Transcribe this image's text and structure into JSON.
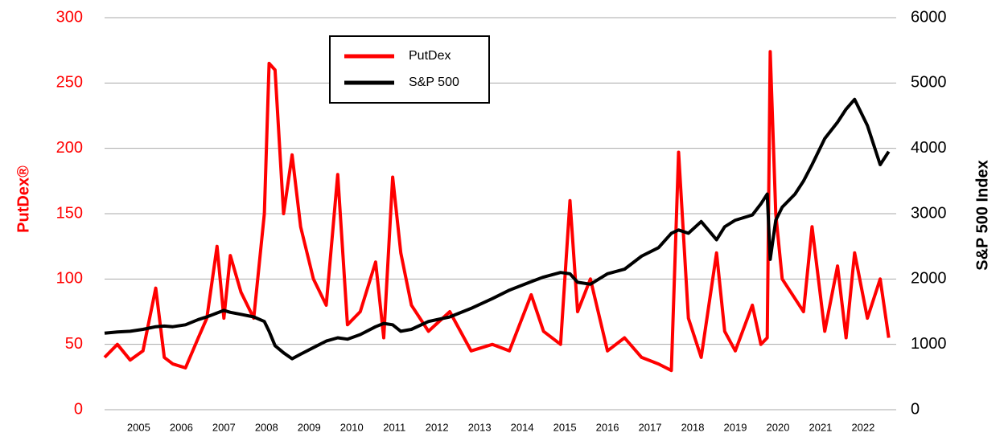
{
  "chart_data": {
    "type": "line",
    "y_label": "PutDex®",
    "y2_label": "S&P 500 Index",
    "x": [
      2004.7,
      2005.0,
      2005.3,
      2005.6,
      2005.9,
      2006.1,
      2006.3,
      2006.6,
      2006.9,
      2007.1,
      2007.34,
      2007.5,
      2007.65,
      2007.9,
      2008.2,
      2008.45,
      2008.56,
      2008.7,
      2008.9,
      2009.1,
      2009.3,
      2009.6,
      2009.9,
      2010.17,
      2010.4,
      2010.7,
      2011.06,
      2011.25,
      2011.46,
      2011.65,
      2011.9,
      2012.3,
      2012.8,
      2013.3,
      2013.8,
      2014.2,
      2014.71,
      2015.0,
      2015.4,
      2015.62,
      2015.8,
      2016.1,
      2016.5,
      2016.9,
      2017.3,
      2017.7,
      2018.0,
      2018.17,
      2018.4,
      2018.7,
      2019.06,
      2019.25,
      2019.5,
      2019.9,
      2020.1,
      2020.25,
      2020.32,
      2020.45,
      2020.6,
      2020.9,
      2021.1,
      2021.3,
      2021.6,
      2021.9,
      2022.1,
      2022.3,
      2022.6,
      2022.9,
      2023.1
    ],
    "series": [
      {
        "name": "PutDex",
        "color": "#ff0000",
        "axis": "y",
        "values": [
          40,
          50,
          38,
          45,
          93,
          40,
          35,
          32,
          55,
          70,
          125,
          70,
          118,
          90,
          70,
          150,
          265,
          260,
          150,
          195,
          140,
          100,
          80,
          180,
          65,
          75,
          113,
          55,
          178,
          120,
          80,
          60,
          75,
          45,
          50,
          45,
          88,
          60,
          50,
          160,
          75,
          100,
          45,
          55,
          40,
          35,
          30,
          197,
          70,
          40,
          120,
          60,
          45,
          80,
          50,
          55,
          274,
          150,
          100,
          85,
          75,
          140,
          60,
          110,
          55,
          120,
          70,
          100,
          55
        ]
      },
      {
        "name": "S&P 500",
        "color": "#000000",
        "axis": "y2",
        "values": [
          1170,
          1190,
          1200,
          1230,
          1270,
          1280,
          1270,
          1300,
          1380,
          1420,
          1480,
          1520,
          1490,
          1460,
          1420,
          1350,
          1200,
          980,
          870,
          780,
          850,
          950,
          1050,
          1100,
          1080,
          1150,
          1270,
          1320,
          1300,
          1200,
          1230,
          1350,
          1420,
          1550,
          1700,
          1830,
          1960,
          2030,
          2100,
          2080,
          1950,
          1920,
          2080,
          2150,
          2350,
          2480,
          2700,
          2750,
          2700,
          2880,
          2600,
          2800,
          2900,
          2980,
          3150,
          3300,
          2300,
          2900,
          3100,
          3300,
          3500,
          3750,
          4150,
          4400,
          4600,
          4750,
          4350,
          3750,
          3950
        ]
      }
    ],
    "xlim": [
      2004.7,
      2023.2
    ],
    "xticks": [
      {
        "value": 2005.5,
        "label": "2005"
      },
      {
        "value": 2006.5,
        "label": "2006"
      },
      {
        "value": 2007.5,
        "label": "2007"
      },
      {
        "value": 2008.5,
        "label": "2008"
      },
      {
        "value": 2009.5,
        "label": "2009"
      },
      {
        "value": 2010.5,
        "label": "2010"
      },
      {
        "value": 2011.5,
        "label": "2011"
      },
      {
        "value": 2012.5,
        "label": "2012"
      },
      {
        "value": 2013.5,
        "label": "2013"
      },
      {
        "value": 2014.5,
        "label": "2014"
      },
      {
        "value": 2015.5,
        "label": "2015"
      },
      {
        "value": 2016.5,
        "label": "2016"
      },
      {
        "value": 2017.5,
        "label": "2017"
      },
      {
        "value": 2018.5,
        "label": "2018"
      },
      {
        "value": 2019.5,
        "label": "2019"
      },
      {
        "value": 2020.5,
        "label": "2020"
      },
      {
        "value": 2021.5,
        "label": "2021"
      },
      {
        "value": 2022.5,
        "label": "2022"
      }
    ],
    "ylim": [
      0,
      300
    ],
    "yticks": [
      0,
      50,
      100,
      150,
      200,
      250,
      300
    ],
    "y2lim": [
      0,
      6000
    ],
    "y2ticks": [
      0,
      1000,
      2000,
      3000,
      4000,
      5000,
      6000
    ],
    "grid": true,
    "legend": "top"
  }
}
